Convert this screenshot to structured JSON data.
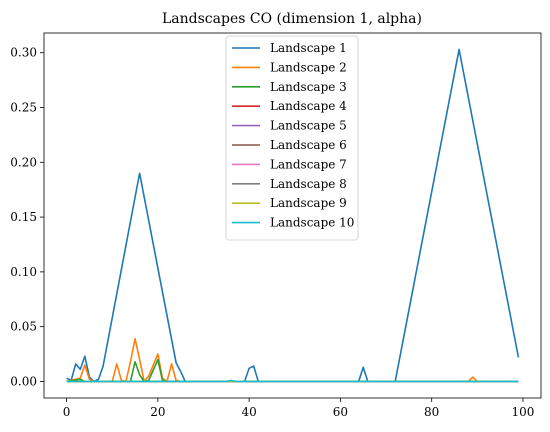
{
  "chart_data": {
    "type": "line",
    "title": "Landscapes CO (dimension 1, alpha)",
    "xlabel": "",
    "ylabel": "",
    "xlim": [
      -4.95,
      103.95
    ],
    "ylim": [
      -0.0151,
      0.318
    ],
    "x_ticks": [
      0,
      20,
      40,
      60,
      80,
      100
    ],
    "y_ticks": [
      0.0,
      0.05,
      0.1,
      0.15,
      0.2,
      0.25,
      0.3
    ],
    "x_tick_labels": [
      "0",
      "20",
      "40",
      "60",
      "80",
      "100"
    ],
    "y_tick_labels": [
      "0.00",
      "0.05",
      "0.10",
      "0.15",
      "0.20",
      "0.25",
      "0.30"
    ],
    "grid": false,
    "legend_position": "top-center",
    "series": [
      {
        "name": "Landscape 1",
        "color": "#1f77b4",
        "points": [
          [
            0,
            0.003
          ],
          [
            1,
            0.001
          ],
          [
            2,
            0.016
          ],
          [
            3,
            0.011
          ],
          [
            4,
            0.023
          ],
          [
            5,
            0.004
          ],
          [
            6,
            0.0
          ],
          [
            7,
            0.002
          ],
          [
            8,
            0.014
          ],
          [
            16,
            0.19
          ],
          [
            24,
            0.017
          ],
          [
            25,
            0.009
          ],
          [
            26,
            0.0
          ],
          [
            39,
            0.0
          ],
          [
            40,
            0.012
          ],
          [
            41,
            0.014
          ],
          [
            42,
            0.0
          ],
          [
            64,
            0.0
          ],
          [
            65,
            0.013
          ],
          [
            66,
            0.0
          ],
          [
            72,
            0.0
          ],
          [
            86,
            0.303
          ],
          [
            99,
            0.022
          ]
        ]
      },
      {
        "name": "Landscape 2",
        "color": "#ff7f0e",
        "points": [
          [
            0,
            0.0
          ],
          [
            3,
            0.003
          ],
          [
            4,
            0.015
          ],
          [
            5,
            0.002
          ],
          [
            6,
            0.0
          ],
          [
            10,
            0.0
          ],
          [
            11,
            0.016
          ],
          [
            12,
            0.001
          ],
          [
            13,
            0.0
          ],
          [
            14,
            0.018
          ],
          [
            15,
            0.039
          ],
          [
            16,
            0.02
          ],
          [
            17,
            0.0
          ],
          [
            18,
            0.005
          ],
          [
            20,
            0.025
          ],
          [
            21,
            0.003
          ],
          [
            22,
            0.0
          ],
          [
            23,
            0.016
          ],
          [
            24,
            0.001
          ],
          [
            25,
            0.0
          ],
          [
            88,
            0.0
          ],
          [
            89,
            0.004
          ],
          [
            90,
            0.0
          ],
          [
            99,
            0.0
          ]
        ]
      },
      {
        "name": "Landscape 3",
        "color": "#2ca02c",
        "points": [
          [
            0,
            0.0
          ],
          [
            3,
            0.002
          ],
          [
            4,
            0.0
          ],
          [
            14,
            0.0
          ],
          [
            15,
            0.018
          ],
          [
            16,
            0.006
          ],
          [
            17,
            0.0
          ],
          [
            18,
            0.001
          ],
          [
            20,
            0.02
          ],
          [
            21,
            0.001
          ],
          [
            22,
            0.0
          ],
          [
            99,
            0.0
          ]
        ]
      },
      {
        "name": "Landscape 4",
        "color": "#d62728",
        "points": [
          [
            0,
            0.0
          ],
          [
            99,
            0.0
          ]
        ]
      },
      {
        "name": "Landscape 5",
        "color": "#9467bd",
        "points": [
          [
            0,
            0.0
          ],
          [
            99,
            0.0
          ]
        ]
      },
      {
        "name": "Landscape 6",
        "color": "#8c564b",
        "points": [
          [
            0,
            0.0
          ],
          [
            99,
            0.0
          ]
        ]
      },
      {
        "name": "Landscape 7",
        "color": "#e377c2",
        "points": [
          [
            0,
            0.0
          ],
          [
            99,
            0.0
          ]
        ]
      },
      {
        "name": "Landscape 8",
        "color": "#7f7f7f",
        "points": [
          [
            0,
            0.0
          ],
          [
            99,
            0.0
          ]
        ]
      },
      {
        "name": "Landscape 9",
        "color": "#bcbd22",
        "points": [
          [
            0,
            0.0
          ],
          [
            99,
            0.0
          ]
        ]
      },
      {
        "name": "Landscape 10",
        "color": "#17becf",
        "points": [
          [
            0,
            0.0
          ],
          [
            35,
            0.0
          ],
          [
            36,
            0.001
          ],
          [
            37,
            0.0
          ],
          [
            99,
            0.0
          ]
        ]
      }
    ]
  }
}
